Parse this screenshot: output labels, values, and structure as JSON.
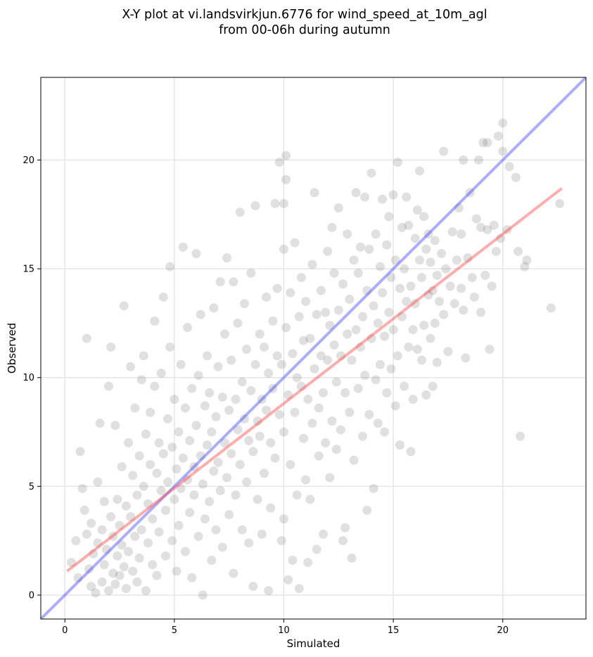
{
  "chart_data": {
    "type": "scatter",
    "title_lines": [
      "X-Y plot at vi.landsvirkjun.6776 for wind_speed_at_10m_agl",
      "from 00-06h during autumn"
    ],
    "xlabel": "Simulated",
    "ylabel": "Observed",
    "xlim": [
      -1.1,
      23.8
    ],
    "ylim": [
      -1.1,
      23.8
    ],
    "xticks": [
      0,
      5,
      10,
      15,
      20
    ],
    "yticks": [
      0,
      5,
      10,
      15,
      20
    ],
    "grid": true,
    "colors": {
      "points": "#555555",
      "identity_line": "#3333ff",
      "fit_line": "#ff3333",
      "grid": "#e6e6e6"
    },
    "identity_line": {
      "x": [
        -1.1,
        23.8
      ],
      "y": [
        -1.1,
        23.8
      ]
    },
    "fit_line": {
      "x": [
        0.1,
        22.7
      ],
      "y": [
        1.1,
        18.7
      ]
    },
    "points": [
      [
        0.3,
        1.5
      ],
      [
        0.5,
        2.5
      ],
      [
        0.6,
        0.8
      ],
      [
        0.7,
        6.6
      ],
      [
        0.8,
        4.9
      ],
      [
        0.9,
        3.9
      ],
      [
        1.0,
        11.8
      ],
      [
        1.0,
        2.8
      ],
      [
        1.1,
        1.2
      ],
      [
        1.2,
        0.4
      ],
      [
        1.2,
        3.3
      ],
      [
        1.3,
        1.9
      ],
      [
        1.4,
        0.1
      ],
      [
        1.5,
        2.4
      ],
      [
        1.5,
        5.2
      ],
      [
        1.6,
        7.9
      ],
      [
        1.7,
        3.0
      ],
      [
        1.7,
        0.6
      ],
      [
        1.8,
        1.4
      ],
      [
        1.8,
        4.3
      ],
      [
        1.9,
        2.1
      ],
      [
        2.0,
        0.2
      ],
      [
        2.0,
        9.6
      ],
      [
        2.1,
        11.4
      ],
      [
        2.1,
        3.6
      ],
      [
        2.2,
        1.0
      ],
      [
        2.2,
        2.7
      ],
      [
        2.3,
        7.8
      ],
      [
        2.3,
        0.5
      ],
      [
        2.4,
        4.4
      ],
      [
        2.4,
        1.8
      ],
      [
        2.5,
        3.2
      ],
      [
        2.5,
        0.9
      ],
      [
        2.6,
        5.9
      ],
      [
        2.6,
        2.3
      ],
      [
        2.7,
        13.3
      ],
      [
        2.7,
        1.3
      ],
      [
        2.8,
        0.3
      ],
      [
        2.8,
        4.1
      ],
      [
        2.9,
        7.0
      ],
      [
        2.9,
        2.0
      ],
      [
        3.0,
        10.5
      ],
      [
        3.0,
        3.6
      ],
      [
        3.1,
        1.1
      ],
      [
        3.1,
        5.5
      ],
      [
        3.2,
        8.6
      ],
      [
        3.2,
        2.7
      ],
      [
        3.3,
        0.6
      ],
      [
        3.3,
        4.6
      ],
      [
        3.4,
        6.4
      ],
      [
        3.4,
        1.7
      ],
      [
        3.5,
        9.9
      ],
      [
        3.5,
        3.0
      ],
      [
        3.6,
        11.0
      ],
      [
        3.6,
        5.0
      ],
      [
        3.7,
        0.2
      ],
      [
        3.7,
        7.4
      ],
      [
        3.8,
        2.4
      ],
      [
        3.8,
        4.2
      ],
      [
        3.9,
        8.4
      ],
      [
        3.9,
        6.0
      ],
      [
        4.0,
        1.4
      ],
      [
        4.0,
        3.5
      ],
      [
        4.1,
        9.6
      ],
      [
        4.1,
        12.6
      ],
      [
        4.2,
        5.6
      ],
      [
        4.2,
        0.9
      ],
      [
        4.3,
        7.0
      ],
      [
        4.3,
        2.9
      ],
      [
        4.4,
        4.8
      ],
      [
        4.4,
        10.2
      ],
      [
        4.5,
        6.5
      ],
      [
        4.5,
        13.7
      ],
      [
        4.6,
        3.9
      ],
      [
        4.6,
        1.8
      ],
      [
        4.7,
        8.1
      ],
      [
        4.7,
        5.2
      ],
      [
        4.8,
        15.1
      ],
      [
        4.8,
        11.4
      ],
      [
        4.9,
        2.5
      ],
      [
        4.9,
        6.8
      ],
      [
        5.0,
        4.4
      ],
      [
        5.0,
        9.0
      ],
      [
        5.1,
        1.1
      ],
      [
        5.1,
        5.8
      ],
      [
        5.2,
        7.5
      ],
      [
        5.2,
        3.2
      ],
      [
        5.3,
        10.6
      ],
      [
        5.3,
        4.9
      ],
      [
        5.4,
        16.0
      ],
      [
        5.4,
        6.3
      ],
      [
        5.5,
        2.0
      ],
      [
        5.5,
        8.6
      ],
      [
        5.6,
        5.3
      ],
      [
        5.6,
        12.3
      ],
      [
        5.7,
        3.8
      ],
      [
        5.7,
        7.1
      ],
      [
        5.8,
        0.8
      ],
      [
        5.8,
        9.5
      ],
      [
        5.9,
        5.9
      ],
      [
        5.9,
        4.6
      ],
      [
        6.0,
        15.7
      ],
      [
        6.0,
        7.8
      ],
      [
        6.1,
        2.7
      ],
      [
        6.1,
        10.1
      ],
      [
        6.2,
        6.4
      ],
      [
        6.2,
        12.9
      ],
      [
        6.3,
        0.0
      ],
      [
        6.3,
        5.1
      ],
      [
        6.4,
        8.7
      ],
      [
        6.4,
        3.5
      ],
      [
        6.5,
        11.0
      ],
      [
        6.5,
        6.9
      ],
      [
        6.6,
        4.3
      ],
      [
        6.6,
        9.3
      ],
      [
        6.7,
        1.6
      ],
      [
        6.7,
        7.5
      ],
      [
        6.8,
        5.7
      ],
      [
        6.8,
        13.2
      ],
      [
        6.9,
        3.0
      ],
      [
        6.9,
        8.2
      ],
      [
        7.0,
        10.5
      ],
      [
        7.0,
        6.1
      ],
      [
        7.1,
        14.4
      ],
      [
        7.1,
        4.8
      ],
      [
        7.2,
        9.1
      ],
      [
        7.2,
        2.2
      ],
      [
        7.3,
        12.0
      ],
      [
        7.3,
        7.0
      ],
      [
        7.4,
        15.5
      ],
      [
        7.4,
        5.4
      ],
      [
        7.5,
        8.5
      ],
      [
        7.5,
        3.7
      ],
      [
        7.6,
        10.8
      ],
      [
        7.6,
        6.5
      ],
      [
        7.7,
        14.4
      ],
      [
        7.7,
        1.0
      ],
      [
        7.8,
        9.0
      ],
      [
        7.8,
        4.6
      ],
      [
        7.9,
        7.6
      ],
      [
        7.9,
        12.5
      ],
      [
        8.0,
        6.0
      ],
      [
        8.0,
        17.6
      ],
      [
        8.1,
        3.0
      ],
      [
        8.1,
        9.8
      ],
      [
        8.2,
        8.1
      ],
      [
        8.2,
        13.4
      ],
      [
        8.3,
        5.2
      ],
      [
        8.3,
        11.3
      ],
      [
        8.4,
        7.1
      ],
      [
        8.4,
        2.4
      ],
      [
        8.5,
        9.4
      ],
      [
        8.5,
        14.8
      ],
      [
        8.6,
        6.6
      ],
      [
        8.6,
        0.4
      ],
      [
        8.7,
        10.6
      ],
      [
        8.7,
        17.9
      ],
      [
        8.8,
        8.0
      ],
      [
        8.8,
        4.4
      ],
      [
        8.9,
        12.0
      ],
      [
        8.9,
        7.3
      ],
      [
        9.0,
        9.0
      ],
      [
        9.0,
        2.8
      ],
      [
        9.1,
        11.4
      ],
      [
        9.1,
        5.6
      ],
      [
        9.2,
        13.7
      ],
      [
        9.2,
        8.5
      ],
      [
        9.3,
        0.2
      ],
      [
        9.3,
        10.2
      ],
      [
        9.4,
        7.0
      ],
      [
        9.4,
        4.0
      ],
      [
        9.5,
        12.6
      ],
      [
        9.5,
        9.5
      ],
      [
        9.6,
        18.0
      ],
      [
        9.6,
        6.3
      ],
      [
        9.7,
        11.0
      ],
      [
        9.7,
        14.1
      ],
      [
        9.8,
        8.3
      ],
      [
        9.8,
        19.9
      ],
      [
        9.9,
        2.5
      ],
      [
        9.9,
        10.6
      ],
      [
        10.0,
        15.9
      ],
      [
        10.0,
        7.5
      ],
      [
        10.0,
        3.5
      ],
      [
        10.0,
        18.0
      ],
      [
        10.1,
        20.2
      ],
      [
        10.1,
        19.1
      ],
      [
        10.1,
        12.3
      ],
      [
        10.2,
        9.2
      ],
      [
        10.2,
        0.7
      ],
      [
        10.3,
        13.9
      ],
      [
        10.3,
        6.0
      ],
      [
        10.4,
        11.1
      ],
      [
        10.4,
        1.6
      ],
      [
        10.5,
        8.4
      ],
      [
        10.5,
        16.2
      ],
      [
        10.6,
        10.0
      ],
      [
        10.6,
        4.6
      ],
      [
        10.7,
        12.8
      ],
      [
        10.7,
        0.3
      ],
      [
        10.8,
        9.6
      ],
      [
        10.8,
        14.6
      ],
      [
        10.9,
        7.2
      ],
      [
        10.9,
        11.7
      ],
      [
        11.0,
        5.3
      ],
      [
        11.0,
        13.5
      ],
      [
        11.1,
        1.5
      ],
      [
        11.1,
        9.0
      ],
      [
        11.2,
        4.4
      ],
      [
        11.2,
        11.8
      ],
      [
        11.3,
        15.2
      ],
      [
        11.3,
        7.9
      ],
      [
        11.4,
        18.5
      ],
      [
        11.4,
        10.4
      ],
      [
        11.5,
        2.1
      ],
      [
        11.5,
        12.9
      ],
      [
        11.6,
        8.6
      ],
      [
        11.6,
        6.4
      ],
      [
        11.7,
        14.0
      ],
      [
        11.7,
        11.0
      ],
      [
        11.8,
        2.8
      ],
      [
        11.8,
        9.3
      ],
      [
        11.9,
        13.0
      ],
      [
        11.9,
        7.0
      ],
      [
        12.0,
        15.8
      ],
      [
        12.0,
        10.8
      ],
      [
        12.1,
        5.4
      ],
      [
        12.1,
        12.4
      ],
      [
        12.2,
        16.9
      ],
      [
        12.2,
        8.0
      ],
      [
        12.3,
        11.5
      ],
      [
        12.3,
        14.8
      ],
      [
        12.4,
        6.7
      ],
      [
        12.4,
        9.8
      ],
      [
        12.5,
        17.8
      ],
      [
        12.5,
        13.1
      ],
      [
        12.6,
        7.6
      ],
      [
        12.6,
        11.0
      ],
      [
        12.7,
        2.5
      ],
      [
        12.7,
        14.3
      ],
      [
        12.8,
        3.1
      ],
      [
        12.8,
        9.3
      ],
      [
        12.9,
        12.0
      ],
      [
        12.9,
        16.6
      ],
      [
        13.0,
        8.4
      ],
      [
        13.0,
        13.6
      ],
      [
        13.1,
        1.7
      ],
      [
        13.1,
        10.8
      ],
      [
        13.2,
        15.4
      ],
      [
        13.2,
        6.2
      ],
      [
        13.3,
        18.5
      ],
      [
        13.3,
        12.2
      ],
      [
        13.4,
        9.5
      ],
      [
        13.4,
        14.8
      ],
      [
        13.5,
        11.4
      ],
      [
        13.5,
        16.0
      ],
      [
        13.6,
        7.3
      ],
      [
        13.6,
        12.8
      ],
      [
        13.7,
        10.1
      ],
      [
        13.7,
        18.3
      ],
      [
        13.8,
        3.9
      ],
      [
        13.8,
        14.0
      ],
      [
        13.9,
        8.3
      ],
      [
        13.9,
        15.9
      ],
      [
        14.0,
        19.4
      ],
      [
        14.0,
        11.8
      ],
      [
        14.1,
        4.9
      ],
      [
        14.1,
        13.3
      ],
      [
        14.2,
        9.9
      ],
      [
        14.2,
        16.6
      ],
      [
        14.3,
        12.5
      ],
      [
        14.3,
        7.9
      ],
      [
        14.4,
        15.1
      ],
      [
        14.4,
        10.6
      ],
      [
        14.5,
        18.2
      ],
      [
        14.5,
        13.9
      ],
      [
        14.6,
        7.5
      ],
      [
        14.6,
        11.9
      ],
      [
        14.7,
        16.1
      ],
      [
        14.7,
        9.3
      ],
      [
        14.8,
        13.0
      ],
      [
        14.8,
        17.4
      ],
      [
        14.9,
        10.4
      ],
      [
        14.9,
        14.6
      ],
      [
        15.0,
        18.4
      ],
      [
        15.0,
        12.2
      ],
      [
        15.1,
        8.7
      ],
      [
        15.1,
        15.4
      ],
      [
        15.2,
        19.9
      ],
      [
        15.2,
        11.0
      ],
      [
        15.3,
        14.1
      ],
      [
        15.3,
        6.9
      ],
      [
        15.4,
        16.9
      ],
      [
        15.4,
        12.8
      ],
      [
        15.5,
        9.6
      ],
      [
        15.5,
        15.0
      ],
      [
        15.6,
        13.5
      ],
      [
        15.6,
        18.3
      ],
      [
        15.7,
        11.4
      ],
      [
        15.7,
        17.0
      ],
      [
        15.8,
        6.6
      ],
      [
        15.8,
        14.2
      ],
      [
        15.9,
        12.2
      ],
      [
        15.9,
        9.0
      ],
      [
        16.0,
        16.4
      ],
      [
        16.0,
        13.4
      ],
      [
        16.1,
        17.7
      ],
      [
        16.1,
        11.3
      ],
      [
        16.2,
        15.4
      ],
      [
        16.2,
        19.5
      ],
      [
        16.3,
        10.8
      ],
      [
        16.3,
        14.6
      ],
      [
        16.4,
        17.4
      ],
      [
        16.4,
        12.4
      ],
      [
        16.5,
        15.9
      ],
      [
        16.5,
        9.2
      ],
      [
        16.6,
        13.8
      ],
      [
        16.6,
        16.6
      ],
      [
        16.7,
        11.8
      ],
      [
        16.7,
        15.3
      ],
      [
        16.8,
        9.6
      ],
      [
        16.8,
        14.0
      ],
      [
        16.9,
        16.3
      ],
      [
        16.9,
        12.5
      ],
      [
        17.0,
        14.7
      ],
      [
        17.0,
        10.7
      ],
      [
        17.1,
        13.5
      ],
      [
        17.2,
        15.7
      ],
      [
        17.3,
        20.4
      ],
      [
        17.3,
        12.9
      ],
      [
        17.4,
        15.0
      ],
      [
        17.5,
        11.2
      ],
      [
        17.6,
        14.2
      ],
      [
        17.7,
        16.7
      ],
      [
        17.8,
        13.4
      ],
      [
        17.9,
        15.4
      ],
      [
        18.0,
        17.8
      ],
      [
        18.1,
        14.1
      ],
      [
        18.1,
        16.6
      ],
      [
        18.2,
        20.0
      ],
      [
        18.2,
        13.1
      ],
      [
        18.3,
        10.9
      ],
      [
        18.4,
        15.5
      ],
      [
        18.5,
        18.5
      ],
      [
        18.6,
        14.6
      ],
      [
        18.7,
        13.7
      ],
      [
        18.8,
        17.3
      ],
      [
        18.9,
        20.0
      ],
      [
        19.0,
        16.9
      ],
      [
        19.0,
        13.0
      ],
      [
        19.1,
        20.8
      ],
      [
        19.2,
        14.7
      ],
      [
        19.3,
        16.8
      ],
      [
        19.3,
        20.8
      ],
      [
        19.4,
        11.3
      ],
      [
        19.5,
        14.2
      ],
      [
        19.6,
        17.0
      ],
      [
        19.7,
        15.8
      ],
      [
        19.8,
        21.1
      ],
      [
        19.9,
        16.4
      ],
      [
        20.0,
        21.7
      ],
      [
        20.0,
        20.4
      ],
      [
        20.2,
        16.8
      ],
      [
        20.3,
        19.7
      ],
      [
        20.6,
        19.2
      ],
      [
        20.7,
        15.8
      ],
      [
        20.8,
        7.3
      ],
      [
        21.0,
        15.1
      ],
      [
        21.1,
        15.4
      ],
      [
        22.2,
        13.2
      ],
      [
        22.6,
        18.0
      ]
    ]
  }
}
